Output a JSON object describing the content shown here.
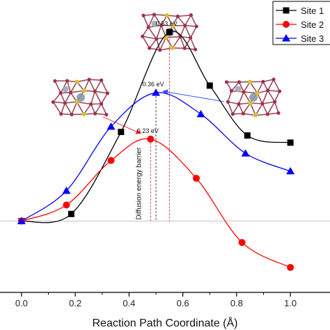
{
  "chart_data": {
    "type": "line",
    "title": "",
    "xlabel": "Reaction Path Coordinate (Å)",
    "ylabel": "",
    "xlim": [
      -0.08,
      1.08
    ],
    "ylim": [
      -0.2,
      0.62
    ],
    "x_ticks": [
      "0.0",
      "0.2",
      "0.4",
      "0.6",
      "0.8",
      "1.0"
    ],
    "legend_position": "top-right",
    "grid": false,
    "series": [
      {
        "name": "Site 1",
        "marker": "square",
        "color": "#000000",
        "x": [
          0.0,
          0.185,
          0.37,
          0.55,
          0.7,
          0.84,
          1.0
        ],
        "y": [
          0.0,
          0.02,
          0.25,
          0.53,
          0.38,
          0.24,
          0.22
        ]
      },
      {
        "name": "Site 2",
        "marker": "circle",
        "color": "#ff0000",
        "x": [
          0.0,
          0.167,
          0.333,
          0.48,
          0.65,
          0.82,
          1.0
        ],
        "y": [
          0.0,
          0.045,
          0.17,
          0.23,
          0.12,
          -0.06,
          -0.13
        ]
      },
      {
        "name": "Site 3",
        "marker": "triangle",
        "color": "#0000ff",
        "x": [
          0.0,
          0.167,
          0.333,
          0.5,
          0.667,
          0.833,
          1.0
        ],
        "y": [
          0.0,
          0.085,
          0.265,
          0.36,
          0.3,
          0.19,
          0.14
        ]
      }
    ],
    "annotations": {
      "peak_labels": [
        {
          "text": "0.53 eV",
          "series": "Site 1"
        },
        {
          "text": "0.36 eV",
          "series": "Site 3"
        },
        {
          "text": "0.23 eV",
          "series": "Site 2"
        }
      ],
      "barrier_label": "Diffusion energy barrier"
    }
  }
}
